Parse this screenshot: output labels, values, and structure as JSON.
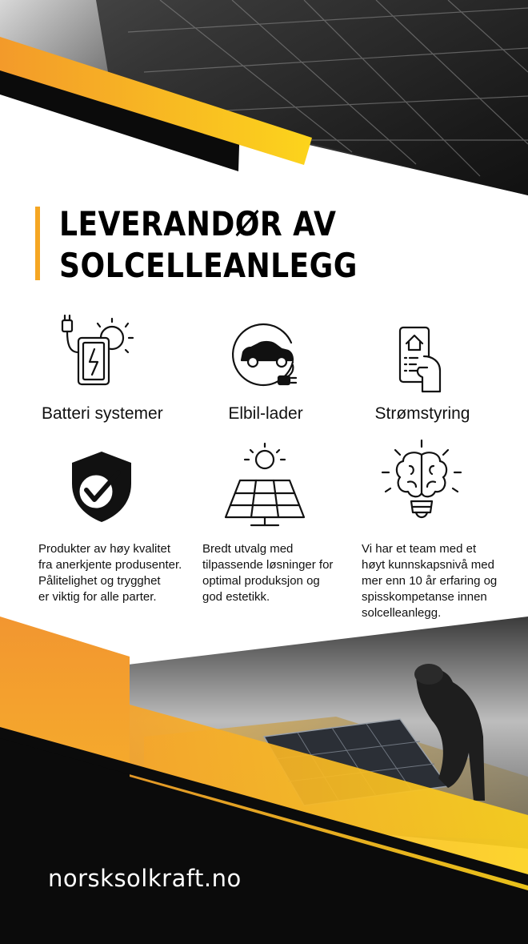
{
  "title": {
    "line1": "LEVERANDØR AV",
    "line2": "SOLCELLEANLEGG"
  },
  "services": [
    {
      "label": "Batteri systemer",
      "icon": "battery-charger-sun-icon"
    },
    {
      "label": "Elbil-lader",
      "icon": "electric-car-plug-icon"
    },
    {
      "label": "Strømstyring",
      "icon": "smart-home-phone-icon"
    }
  ],
  "values": [
    {
      "icon": "shield-check-icon",
      "lines": [
        "Produkter av høy kvalitet",
        "fra anerkjente produsenter.",
        "Pålitelighet og trygghet",
        "er viktig for alle parter."
      ]
    },
    {
      "icon": "solar-panel-sun-icon",
      "lines": [
        "Bredt utvalg med",
        "tilpassende løsninger for",
        "optimal produksjon og",
        "god estetikk."
      ]
    },
    {
      "icon": "brain-bulb-icon",
      "lines": [
        "Vi har et team med et",
        "høyt kunnskapsnivå med",
        "mer enn 10 år erfaring og",
        "spisskompetanse innen",
        "solcelleanlegg."
      ]
    }
  ],
  "website": "norsksolkraft.no",
  "colors": {
    "accent_yellow": "#f7c21a",
    "accent_orange": "#f29b2e",
    "dark": "#0b0b0b",
    "background": "#ffffff"
  }
}
